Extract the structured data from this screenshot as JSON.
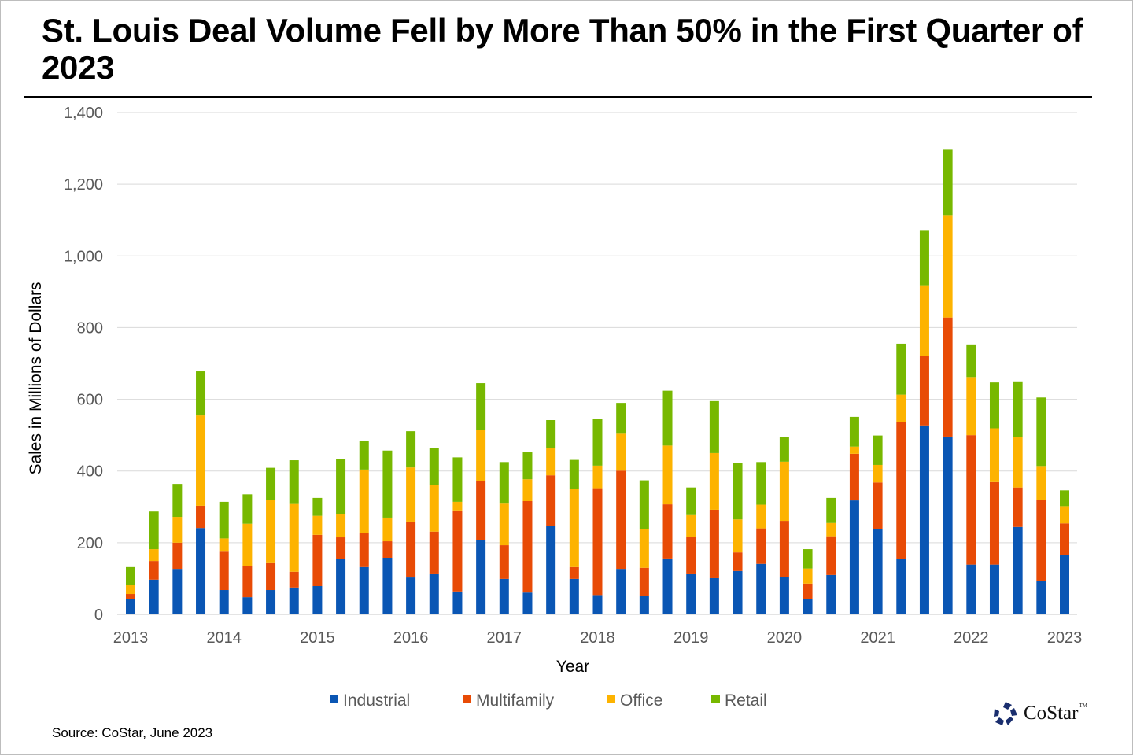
{
  "chart_data": {
    "type": "bar",
    "stacked": true,
    "title": "St. Louis Deal Volume Fell by More Than 50% in the First Quarter of 2023",
    "xlabel": "Year",
    "ylabel": "Sales in Millions of Dollars",
    "ylim": [
      0,
      1400
    ],
    "yticks": [
      0,
      200,
      400,
      600,
      800,
      1000,
      1200,
      1400
    ],
    "ytick_labels": [
      "0",
      "200",
      "400",
      "600",
      "800",
      "1,000",
      "1,200",
      "1,400"
    ],
    "xtick_labels": [
      "2013",
      "2014",
      "2015",
      "2016",
      "2017",
      "2018",
      "2019",
      "2020",
      "2021",
      "2022",
      "2023"
    ],
    "grid": true,
    "legend_position": "bottom",
    "categories": [
      "2013 Q1",
      "2013 Q2",
      "2013 Q3",
      "2013 Q4",
      "2014 Q1",
      "2014 Q2",
      "2014 Q3",
      "2014 Q4",
      "2015 Q1",
      "2015 Q2",
      "2015 Q3",
      "2015 Q4",
      "2016 Q1",
      "2016 Q2",
      "2016 Q3",
      "2016 Q4",
      "2017 Q1",
      "2017 Q2",
      "2017 Q3",
      "2017 Q4",
      "2018 Q1",
      "2018 Q2",
      "2018 Q3",
      "2018 Q4",
      "2019 Q1",
      "2019 Q2",
      "2019 Q3",
      "2019 Q4",
      "2020 Q1",
      "2020 Q2",
      "2020 Q3",
      "2020 Q4",
      "2021 Q1",
      "2021 Q2",
      "2021 Q3",
      "2021 Q4",
      "2022 Q1",
      "2022 Q2",
      "2022 Q3",
      "2022 Q4",
      "2023 Q1"
    ],
    "series": [
      {
        "name": "Industrial",
        "color": "#0a56b4",
        "values": [
          42,
          97,
          127,
          241,
          68,
          48,
          68,
          75,
          79,
          154,
          132,
          158,
          103,
          112,
          64,
          207,
          99,
          61,
          247,
          99,
          54,
          127,
          51,
          156,
          112,
          101,
          121,
          141,
          105,
          42,
          110,
          318,
          239,
          154,
          527,
          496,
          139,
          139,
          244,
          94,
          166
        ]
      },
      {
        "name": "Multifamily",
        "color": "#e84b06",
        "values": [
          15,
          52,
          73,
          62,
          107,
          88,
          75,
          44,
          143,
          61,
          94,
          46,
          156,
          119,
          226,
          164,
          94,
          255,
          141,
          33,
          298,
          274,
          79,
          151,
          104,
          191,
          52,
          99,
          156,
          44,
          108,
          130,
          129,
          383,
          194,
          332,
          361,
          230,
          110,
          225,
          88
        ]
      },
      {
        "name": "Office",
        "color": "#fdb300",
        "values": [
          26,
          33,
          72,
          252,
          37,
          117,
          176,
          189,
          53,
          64,
          178,
          66,
          151,
          131,
          24,
          143,
          116,
          61,
          75,
          218,
          63,
          103,
          107,
          164,
          61,
          158,
          92,
          66,
          165,
          42,
          37,
          20,
          49,
          76,
          197,
          286,
          162,
          150,
          141,
          95,
          48
        ]
      },
      {
        "name": "Retail",
        "color": "#77b800",
        "values": [
          49,
          105,
          92,
          123,
          102,
          82,
          90,
          122,
          50,
          155,
          81,
          187,
          101,
          101,
          124,
          131,
          116,
          75,
          79,
          81,
          131,
          86,
          137,
          153,
          77,
          145,
          158,
          119,
          68,
          54,
          70,
          83,
          82,
          142,
          152,
          182,
          91,
          128,
          155,
          191,
          44
        ]
      }
    ]
  },
  "legend": {
    "items": [
      {
        "label": "Industrial",
        "color": "#0a56b4"
      },
      {
        "label": "Multifamily",
        "color": "#e84b06"
      },
      {
        "label": "Office",
        "color": "#fdb300"
      },
      {
        "label": "Retail",
        "color": "#77b800"
      }
    ]
  },
  "footer": {
    "source": "Source: CoStar, June 2023",
    "logo_text": "CoStar",
    "logo_tm": "TM"
  }
}
